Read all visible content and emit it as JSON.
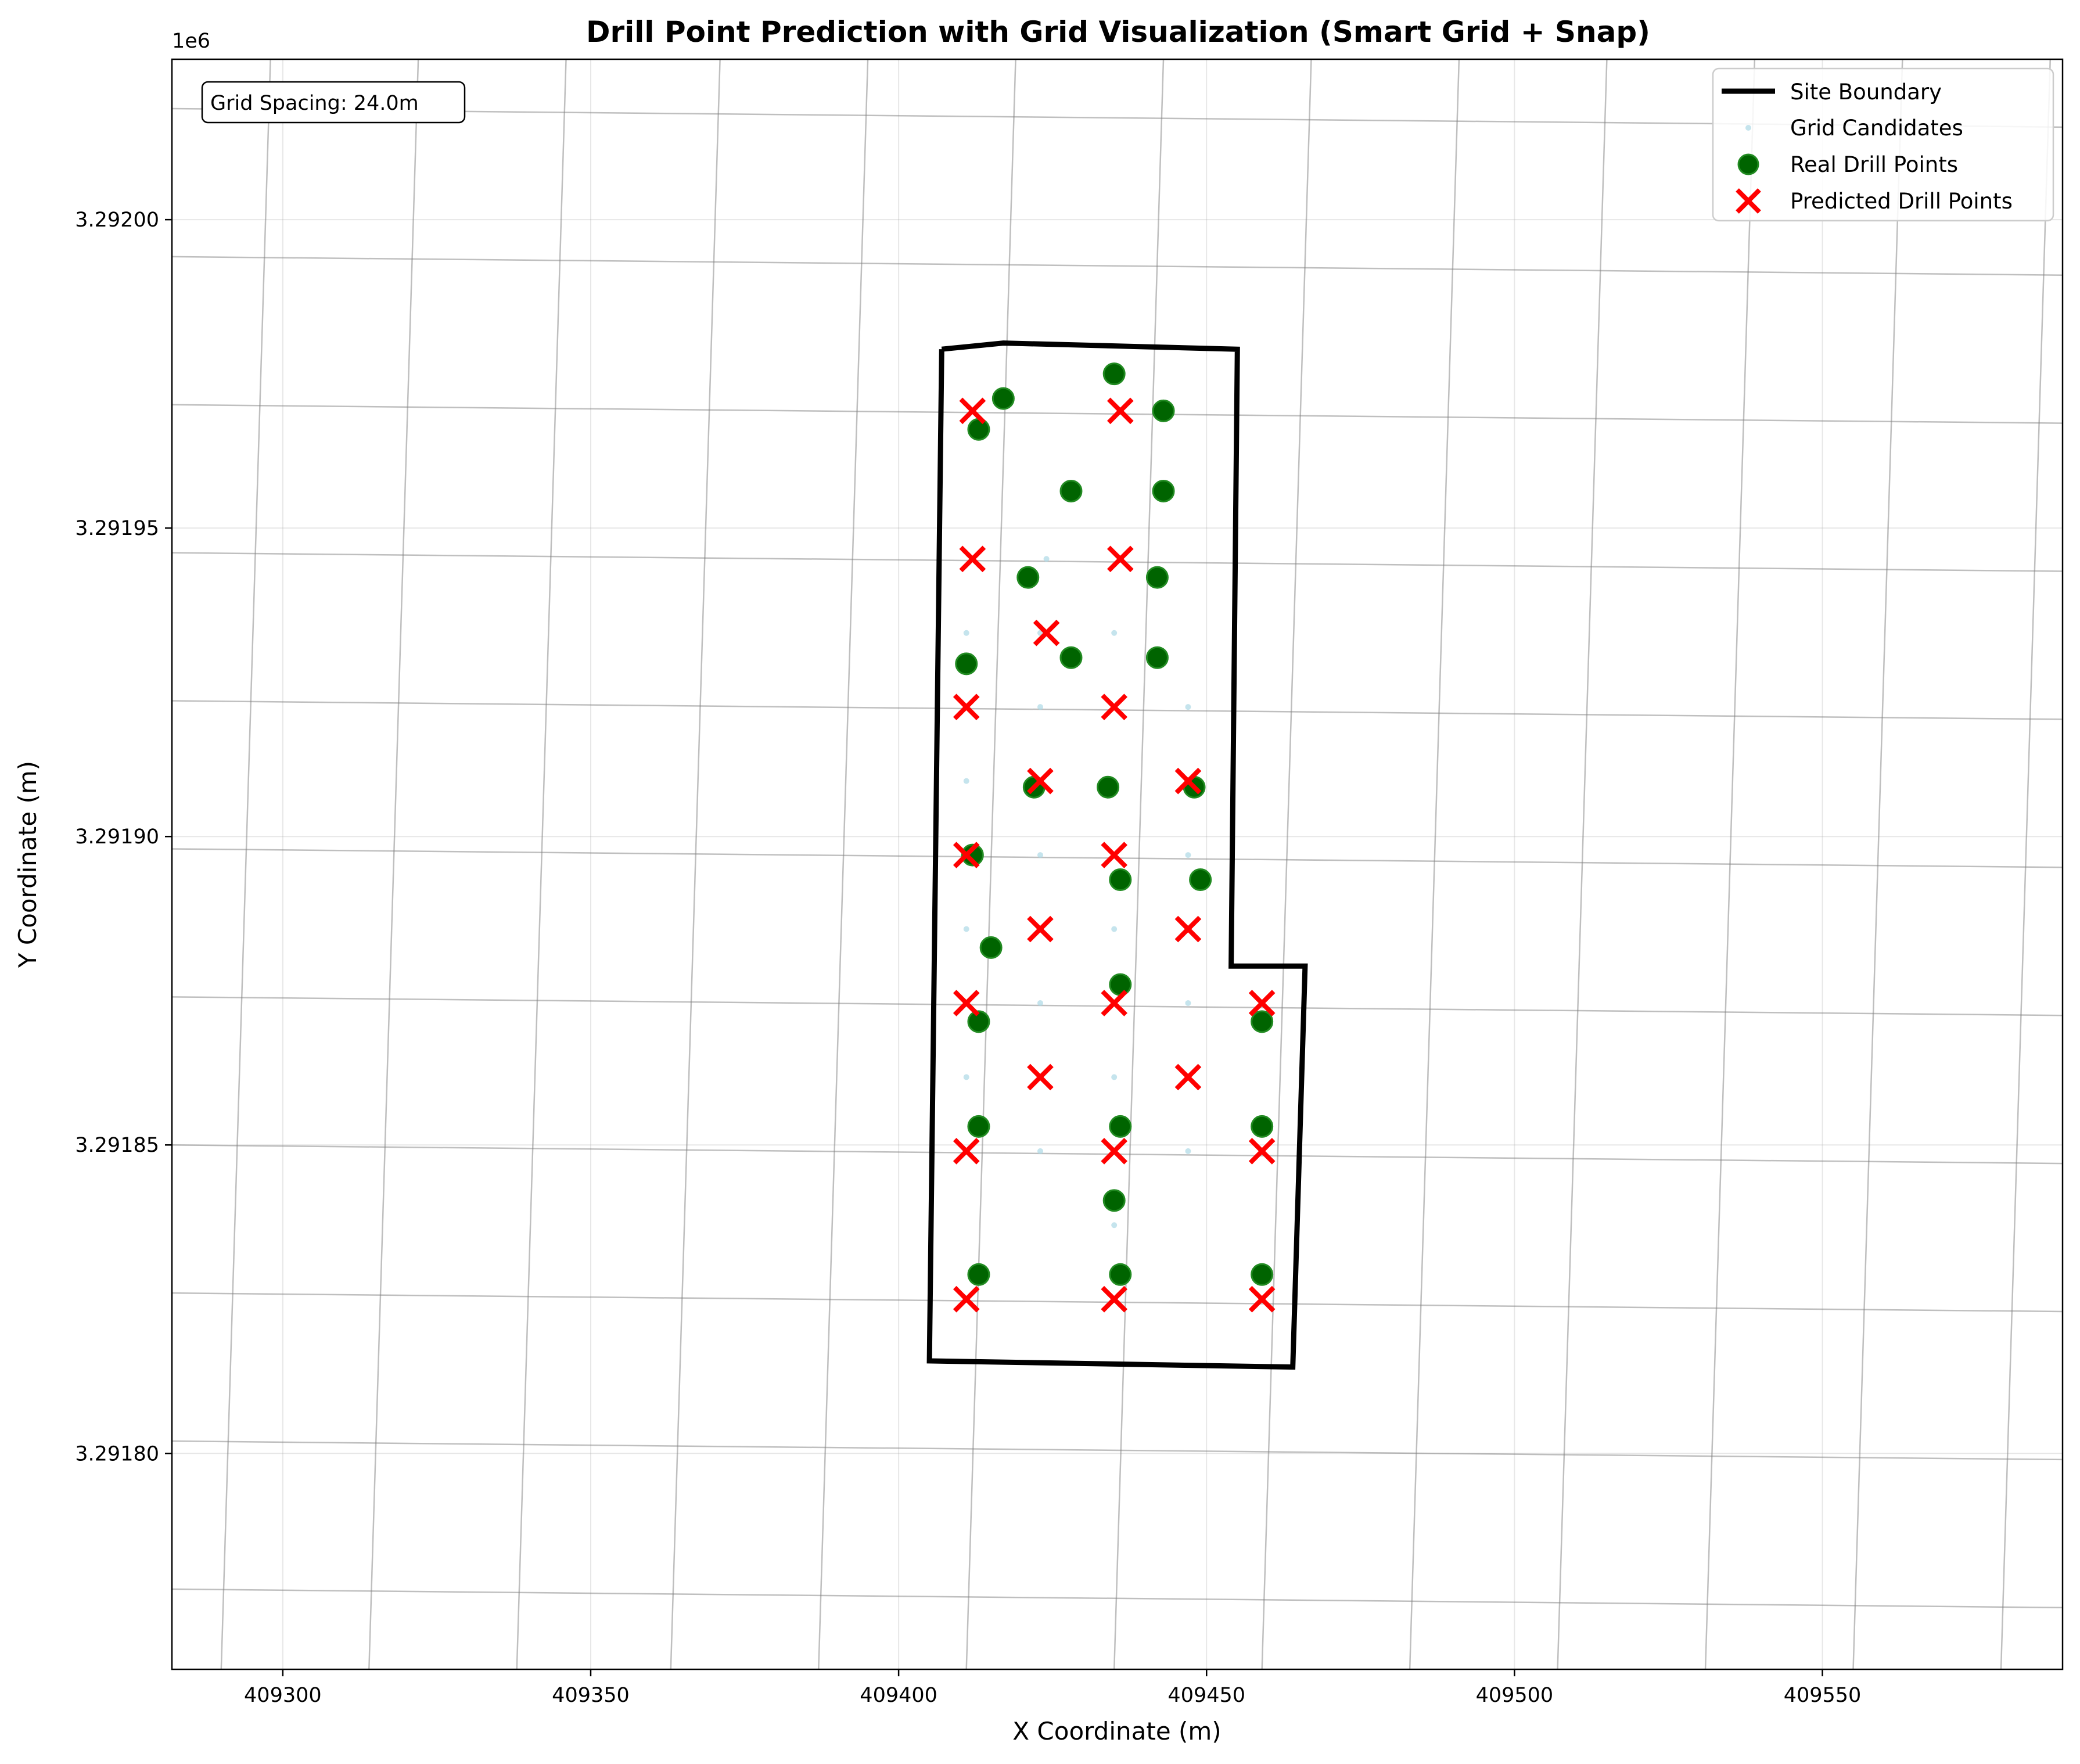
{
  "chart_data": {
    "type": "scatter",
    "title": "Drill Point Prediction with Grid Visualization (Smart Grid + Snap)",
    "xlabel": "X Coordinate (m)",
    "ylabel": "Y Coordinate (m)",
    "y_offset_label": "1e6",
    "xlim": [
      409282,
      409589
    ],
    "ylim": [
      3291765,
      3292026
    ],
    "x_ticks": [
      {
        "value": 409300,
        "label": "409300"
      },
      {
        "value": 409350,
        "label": "409350"
      },
      {
        "value": 409400,
        "label": "409400"
      },
      {
        "value": 409450,
        "label": "409450"
      },
      {
        "value": 409500,
        "label": "409500"
      },
      {
        "value": 409550,
        "label": "409550"
      }
    ],
    "y_ticks": [
      {
        "value": 3291800,
        "label": "3.29180"
      },
      {
        "value": 3291850,
        "label": "3.29185"
      },
      {
        "value": 3291900,
        "label": "3.29190"
      },
      {
        "value": 3291950,
        "label": "3.29195"
      },
      {
        "value": 3292000,
        "label": "3.29200"
      }
    ],
    "grid": true,
    "annotation": "Grid Spacing: 24.0m",
    "legend": {
      "position": "top-right",
      "entries": [
        {
          "key": "boundary",
          "label": "Site Boundary"
        },
        {
          "key": "candidates",
          "label": "Grid Candidates"
        },
        {
          "key": "real",
          "label": "Real Drill Points"
        },
        {
          "key": "predicted",
          "label": "Predicted Drill Points"
        }
      ]
    },
    "colors": {
      "boundary": "#000000",
      "candidates": "#add8e6",
      "real_fill": "#006400",
      "real_edge": "#228b22",
      "predicted": "#ff0000",
      "grid_lines": "#808080"
    },
    "site_boundary": [
      [
        409407,
        3291979
      ],
      [
        409417,
        3291980
      ],
      [
        409455,
        3291979
      ],
      [
        409454,
        3291879
      ],
      [
        409466,
        3291879
      ],
      [
        409464,
        3291814
      ],
      [
        409405,
        3291815
      ],
      [
        409407,
        3291979
      ]
    ],
    "grid_lines": {
      "near_vertical": [
        {
          "x_bottom": 409290,
          "x_top": 409298
        },
        {
          "x_bottom": 409314,
          "x_top": 409322
        },
        {
          "x_bottom": 409338,
          "x_top": 409346
        },
        {
          "x_bottom": 409363,
          "x_top": 409371
        },
        {
          "x_bottom": 409387,
          "x_top": 409395
        },
        {
          "x_bottom": 409411,
          "x_top": 409419
        },
        {
          "x_bottom": 409435,
          "x_top": 409443
        },
        {
          "x_bottom": 409459,
          "x_top": 409467
        },
        {
          "x_bottom": 409483,
          "x_top": 409491
        },
        {
          "x_bottom": 409507,
          "x_top": 409515
        },
        {
          "x_bottom": 409531,
          "x_top": 409539
        },
        {
          "x_bottom": 409555,
          "x_top": 409563
        },
        {
          "x_bottom": 409579,
          "x_top": 409587
        }
      ],
      "near_horizontal": [
        {
          "y_left": 3291778,
          "y_right": 3291775
        },
        {
          "y_left": 3291802,
          "y_right": 3291799
        },
        {
          "y_left": 3291826,
          "y_right": 3291823
        },
        {
          "y_left": 3291850,
          "y_right": 3291847
        },
        {
          "y_left": 3291874,
          "y_right": 3291871
        },
        {
          "y_left": 3291898,
          "y_right": 3291895
        },
        {
          "y_left": 3291922,
          "y_right": 3291919
        },
        {
          "y_left": 3291946,
          "y_right": 3291943
        },
        {
          "y_left": 3291970,
          "y_right": 3291967
        },
        {
          "y_left": 3291994,
          "y_right": 3291991
        },
        {
          "y_left": 3292018,
          "y_right": 3292015
        }
      ]
    },
    "grid_candidates": [
      {
        "x": 409411,
        "y": 3291825
      },
      {
        "x": 409435,
        "y": 3291825
      },
      {
        "x": 409459,
        "y": 3291825
      },
      {
        "x": 409435,
        "y": 3291837
      },
      {
        "x": 409411,
        "y": 3291849
      },
      {
        "x": 409423,
        "y": 3291849
      },
      {
        "x": 409435,
        "y": 3291849
      },
      {
        "x": 409447,
        "y": 3291849
      },
      {
        "x": 409459,
        "y": 3291849
      },
      {
        "x": 409411,
        "y": 3291861
      },
      {
        "x": 409423,
        "y": 3291861
      },
      {
        "x": 409435,
        "y": 3291861
      },
      {
        "x": 409447,
        "y": 3291861
      },
      {
        "x": 409411,
        "y": 3291873
      },
      {
        "x": 409423,
        "y": 3291873
      },
      {
        "x": 409435,
        "y": 3291873
      },
      {
        "x": 409447,
        "y": 3291873
      },
      {
        "x": 409459,
        "y": 3291873
      },
      {
        "x": 409411,
        "y": 3291885
      },
      {
        "x": 409423,
        "y": 3291885
      },
      {
        "x": 409435,
        "y": 3291885
      },
      {
        "x": 409447,
        "y": 3291885
      },
      {
        "x": 409411,
        "y": 3291897
      },
      {
        "x": 409423,
        "y": 3291897
      },
      {
        "x": 409435,
        "y": 3291897
      },
      {
        "x": 409447,
        "y": 3291897
      },
      {
        "x": 409411,
        "y": 3291909
      },
      {
        "x": 409423,
        "y": 3291909
      },
      {
        "x": 409435,
        "y": 3291909
      },
      {
        "x": 409447,
        "y": 3291909
      },
      {
        "x": 409411,
        "y": 3291921
      },
      {
        "x": 409423,
        "y": 3291921
      },
      {
        "x": 409435,
        "y": 3291921
      },
      {
        "x": 409447,
        "y": 3291921
      },
      {
        "x": 409411,
        "y": 3291933
      },
      {
        "x": 409423,
        "y": 3291933
      },
      {
        "x": 409435,
        "y": 3291933
      },
      {
        "x": 409412,
        "y": 3291945
      },
      {
        "x": 409424,
        "y": 3291945
      },
      {
        "x": 409436,
        "y": 3291945
      },
      {
        "x": 409412,
        "y": 3291969
      },
      {
        "x": 409436,
        "y": 3291969
      }
    ],
    "real_points": [
      {
        "x": 409417,
        "y": 3291971
      },
      {
        "x": 409435,
        "y": 3291975
      },
      {
        "x": 409443,
        "y": 3291969
      },
      {
        "x": 409413,
        "y": 3291966
      },
      {
        "x": 409428,
        "y": 3291956
      },
      {
        "x": 409443,
        "y": 3291956
      },
      {
        "x": 409421,
        "y": 3291942
      },
      {
        "x": 409442,
        "y": 3291942
      },
      {
        "x": 409411,
        "y": 3291928
      },
      {
        "x": 409428,
        "y": 3291929
      },
      {
        "x": 409442,
        "y": 3291929
      },
      {
        "x": 409422,
        "y": 3291908
      },
      {
        "x": 409434,
        "y": 3291908
      },
      {
        "x": 409448,
        "y": 3291908
      },
      {
        "x": 409412,
        "y": 3291897
      },
      {
        "x": 409436,
        "y": 3291893
      },
      {
        "x": 409449,
        "y": 3291893
      },
      {
        "x": 409415,
        "y": 3291882
      },
      {
        "x": 409436,
        "y": 3291876
      },
      {
        "x": 409413,
        "y": 3291870
      },
      {
        "x": 409459,
        "y": 3291870
      },
      {
        "x": 409413,
        "y": 3291853
      },
      {
        "x": 409436,
        "y": 3291853
      },
      {
        "x": 409459,
        "y": 3291853
      },
      {
        "x": 409435,
        "y": 3291841
      },
      {
        "x": 409413,
        "y": 3291829
      },
      {
        "x": 409436,
        "y": 3291829
      },
      {
        "x": 409459,
        "y": 3291829
      }
    ],
    "predicted_points": [
      {
        "x": 409412,
        "y": 3291969
      },
      {
        "x": 409436,
        "y": 3291969
      },
      {
        "x": 409412,
        "y": 3291945
      },
      {
        "x": 409436,
        "y": 3291945
      },
      {
        "x": 409424,
        "y": 3291933
      },
      {
        "x": 409411,
        "y": 3291921
      },
      {
        "x": 409435,
        "y": 3291921
      },
      {
        "x": 409423,
        "y": 3291909
      },
      {
        "x": 409447,
        "y": 3291909
      },
      {
        "x": 409411,
        "y": 3291897
      },
      {
        "x": 409435,
        "y": 3291897
      },
      {
        "x": 409423,
        "y": 3291885
      },
      {
        "x": 409447,
        "y": 3291885
      },
      {
        "x": 409411,
        "y": 3291873
      },
      {
        "x": 409435,
        "y": 3291873
      },
      {
        "x": 409459,
        "y": 3291873
      },
      {
        "x": 409423,
        "y": 3291861
      },
      {
        "x": 409447,
        "y": 3291861
      },
      {
        "x": 409411,
        "y": 3291849
      },
      {
        "x": 409435,
        "y": 3291849
      },
      {
        "x": 409459,
        "y": 3291849
      },
      {
        "x": 409411,
        "y": 3291825
      },
      {
        "x": 409435,
        "y": 3291825
      },
      {
        "x": 409459,
        "y": 3291825
      }
    ]
  }
}
